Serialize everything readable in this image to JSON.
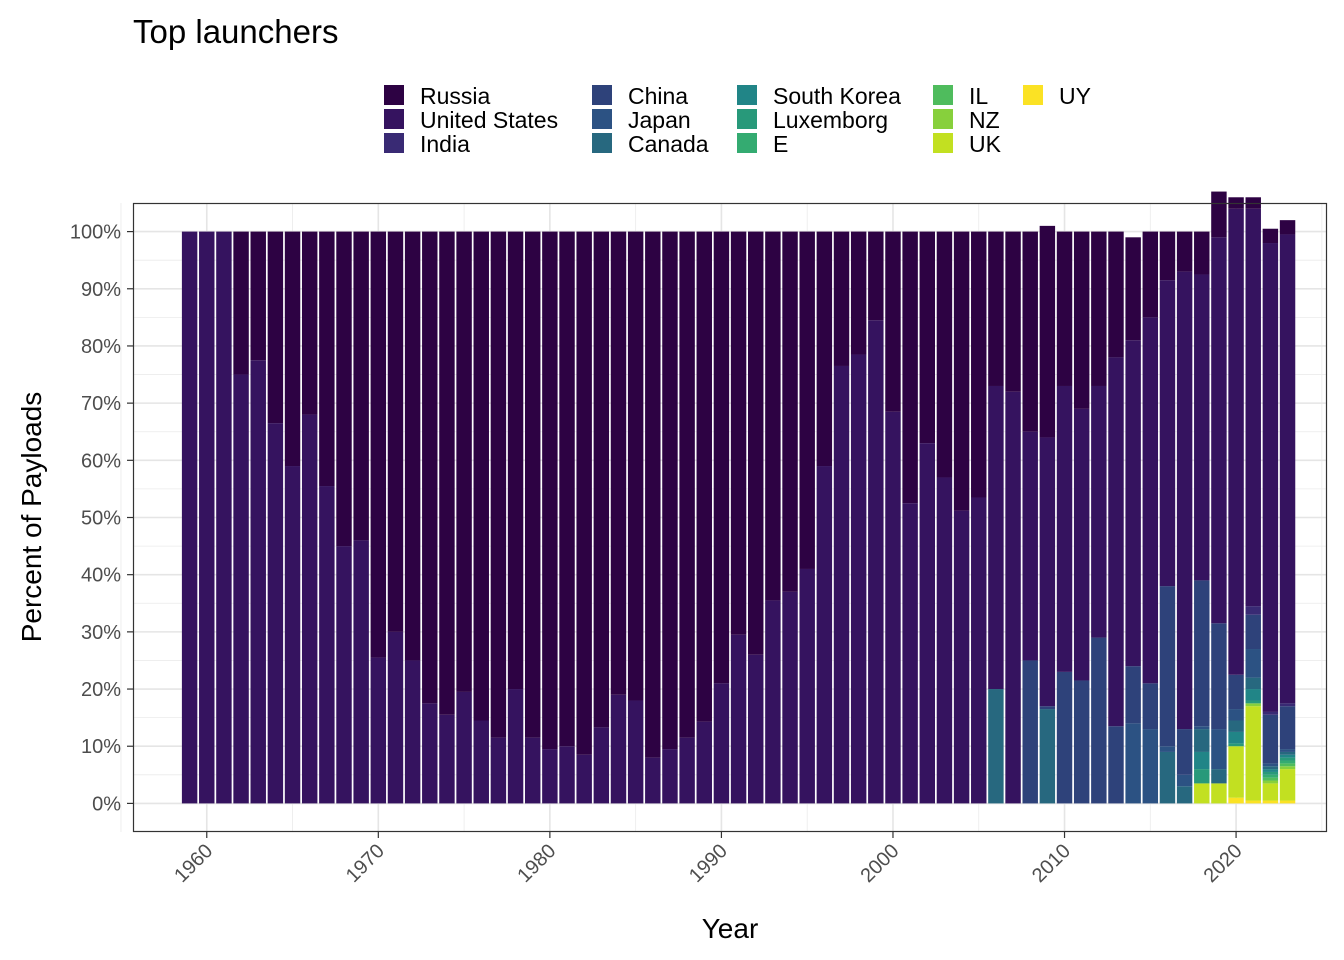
{
  "chart_data": {
    "type": "bar",
    "stacked": true,
    "percent": true,
    "title": "Top launchers",
    "xlabel": "Year",
    "ylabel": "Percent of Payloads",
    "xlim": [
      1955.7,
      2025.3
    ],
    "ylim": [
      -0.05,
      1.05
    ],
    "x_ticks": [
      "1960",
      "1970",
      "1980",
      "1990",
      "2000",
      "2010",
      "2020"
    ],
    "y_ticks": [
      "0%",
      "10%",
      "20%",
      "30%",
      "40%",
      "50%",
      "60%",
      "70%",
      "80%",
      "90%",
      "100%"
    ],
    "grid": true,
    "legend_position": "top",
    "legend": [
      {
        "name": "Russia",
        "color": "#2d0243"
      },
      {
        "name": "United States",
        "color": "#35135f"
      },
      {
        "name": "India",
        "color": "#392a74"
      },
      {
        "name": "China",
        "color": "#2e427a"
      },
      {
        "name": "Japan",
        "color": "#2c5283"
      },
      {
        "name": "Canada",
        "color": "#27687f"
      },
      {
        "name": "South Korea",
        "color": "#218587"
      },
      {
        "name": "Luxemborg",
        "color": "#28997a"
      },
      {
        "name": "E",
        "color": "#34ab71"
      },
      {
        "name": "IL",
        "color": "#4fbc5d"
      },
      {
        "name": "NZ",
        "color": "#87d03c"
      },
      {
        "name": "UK",
        "color": "#c2e021"
      },
      {
        "name": "UY",
        "color": "#fbe224"
      }
    ],
    "years": [
      1959,
      1960,
      1961,
      1962,
      1963,
      1964,
      1965,
      1966,
      1967,
      1968,
      1969,
      1970,
      1971,
      1972,
      1973,
      1974,
      1975,
      1976,
      1977,
      1978,
      1979,
      1980,
      1981,
      1982,
      1983,
      1984,
      1985,
      1986,
      1987,
      1988,
      1989,
      1990,
      1991,
      1992,
      1993,
      1994,
      1995,
      1996,
      1997,
      1998,
      1999,
      2000,
      2001,
      2002,
      2003,
      2004,
      2005,
      2006,
      2007,
      2008,
      2009,
      2010,
      2011,
      2012,
      2013,
      2014,
      2015,
      2016,
      2017,
      2018,
      2019,
      2020,
      2021,
      2022,
      2023
    ],
    "series": [
      {
        "name": "Russia",
        "values": [
          0,
          0,
          0,
          0.25,
          0.225,
          0.335,
          0.41,
          0.32,
          0.445,
          0.55,
          0.54,
          0.745,
          0.7,
          0.75,
          0.825,
          0.845,
          0.805,
          0.855,
          0.885,
          0.8,
          0.885,
          0.905,
          0.9,
          0.915,
          0.867,
          0.81,
          0.82,
          0.92,
          0.905,
          0.885,
          0.857,
          0.79,
          0.705,
          0.74,
          0.645,
          0.63,
          0.59,
          0.41,
          0.235,
          0.215,
          0.155,
          0.315,
          0.475,
          0.37,
          0.43,
          0.488,
          0.465,
          0.27,
          0.28,
          0.35,
          0.37,
          0.27,
          0.31,
          0.27,
          0.22,
          0.18,
          0.15,
          0.085,
          0.07,
          0.075,
          0.08,
          0.02,
          0.02,
          0.025,
          0.025
        ]
      },
      {
        "name": "United States",
        "values": [
          1,
          1,
          1,
          0.75,
          0.775,
          0.665,
          0.59,
          0.68,
          0.555,
          0.45,
          0.46,
          0.255,
          0.3,
          0.25,
          0.175,
          0.155,
          0.195,
          0.145,
          0.115,
          0.2,
          0.115,
          0.095,
          0.1,
          0.085,
          0.133,
          0.19,
          0.18,
          0.08,
          0.095,
          0.115,
          0.143,
          0.21,
          0.295,
          0.26,
          0.355,
          0.37,
          0.41,
          0.59,
          0.765,
          0.785,
          0.845,
          0.685,
          0.525,
          0.63,
          0.57,
          0.512,
          0.535,
          0.53,
          0.72,
          0.4,
          0.47,
          0.5,
          0.475,
          0.44,
          0.645,
          0.57,
          0.64,
          0.535,
          0.8,
          0.535,
          0.675,
          0.815,
          0.695,
          0.82,
          0.82
        ]
      },
      {
        "name": "India",
        "values": [
          0,
          0,
          0,
          0,
          0,
          0,
          0,
          0,
          0,
          0,
          0,
          0,
          0,
          0,
          0,
          0,
          0,
          0,
          0,
          0,
          0,
          0,
          0,
          0,
          0,
          0,
          0,
          0,
          0,
          0,
          0,
          0,
          0,
          0,
          0,
          0,
          0,
          0,
          0,
          0,
          0,
          0,
          0,
          0,
          0,
          0,
          0,
          0,
          0,
          0,
          0,
          0,
          0,
          0,
          0,
          0,
          0,
          0,
          0,
          0,
          0,
          0,
          0.015,
          0.005,
          0.005
        ]
      },
      {
        "name": "China",
        "values": [
          0,
          0,
          0,
          0,
          0,
          0,
          0,
          0,
          0,
          0,
          0,
          0,
          0,
          0,
          0,
          0,
          0,
          0,
          0,
          0,
          0,
          0,
          0,
          0,
          0,
          0,
          0,
          0,
          0,
          0,
          0,
          0,
          0,
          0,
          0,
          0,
          0,
          0,
          0,
          0,
          0,
          0,
          0,
          0,
          0,
          0,
          0,
          0,
          0,
          0.25,
          0.005,
          0.23,
          0.215,
          0.29,
          0.135,
          0.1,
          0.08,
          0.28,
          0.08,
          0.255,
          0.185,
          0.06,
          0.06,
          0.085,
          0.075
        ]
      },
      {
        "name": "Japan",
        "values": [
          0,
          0,
          0,
          0,
          0,
          0,
          0,
          0,
          0,
          0,
          0,
          0,
          0,
          0,
          0,
          0,
          0,
          0,
          0,
          0,
          0,
          0,
          0,
          0,
          0,
          0,
          0,
          0,
          0,
          0,
          0,
          0,
          0,
          0,
          0,
          0,
          0,
          0,
          0,
          0,
          0,
          0,
          0,
          0,
          0,
          0,
          0,
          0,
          0,
          0,
          0,
          0,
          0,
          0,
          0,
          0.14,
          0.13,
          0.01,
          0.02,
          0.005,
          0.07,
          0.02,
          0.05,
          0.005,
          0.005
        ]
      },
      {
        "name": "Canada",
        "values": [
          0,
          0,
          0,
          0,
          0,
          0,
          0,
          0,
          0,
          0,
          0,
          0,
          0,
          0,
          0,
          0,
          0,
          0,
          0,
          0,
          0,
          0,
          0,
          0,
          0,
          0,
          0,
          0,
          0,
          0,
          0,
          0,
          0,
          0,
          0,
          0,
          0,
          0,
          0,
          0,
          0,
          0,
          0,
          0,
          0,
          0,
          0,
          0.2,
          0,
          0,
          0.165,
          0,
          0,
          0,
          0,
          0,
          0,
          0.09,
          0.03,
          0.04,
          0.025,
          0.02,
          0.02,
          0.005,
          0.005
        ]
      },
      {
        "name": "South Korea",
        "values": [
          0,
          0,
          0,
          0,
          0,
          0,
          0,
          0,
          0,
          0,
          0,
          0,
          0,
          0,
          0,
          0,
          0,
          0,
          0,
          0,
          0,
          0,
          0,
          0,
          0,
          0,
          0,
          0,
          0,
          0,
          0,
          0,
          0,
          0,
          0,
          0,
          0,
          0,
          0,
          0,
          0,
          0,
          0,
          0,
          0,
          0,
          0,
          0,
          0,
          0,
          0,
          0,
          0,
          0,
          0,
          0,
          0,
          0,
          0,
          0.03,
          0,
          0.02,
          0.02,
          0.005,
          0.005
        ]
      },
      {
        "name": "Luxemborg",
        "values": [
          0,
          0,
          0,
          0,
          0,
          0,
          0,
          0,
          0,
          0,
          0,
          0,
          0,
          0,
          0,
          0,
          0,
          0,
          0,
          0,
          0,
          0,
          0,
          0,
          0,
          0,
          0,
          0,
          0,
          0,
          0,
          0,
          0,
          0,
          0,
          0,
          0,
          0,
          0,
          0,
          0,
          0,
          0,
          0,
          0,
          0,
          0,
          0,
          0,
          0,
          0,
          0,
          0,
          0,
          0,
          0,
          0,
          0,
          0,
          0.025,
          0,
          0.005,
          0.005,
          0.005,
          0.005
        ]
      },
      {
        "name": "E",
        "values": [
          0,
          0,
          0,
          0,
          0,
          0,
          0,
          0,
          0,
          0,
          0,
          0,
          0,
          0,
          0,
          0,
          0,
          0,
          0,
          0,
          0,
          0,
          0,
          0,
          0,
          0,
          0,
          0,
          0,
          0,
          0,
          0,
          0,
          0,
          0,
          0,
          0,
          0,
          0,
          0,
          0,
          0,
          0,
          0,
          0,
          0,
          0,
          0,
          0,
          0,
          0,
          0,
          0,
          0,
          0,
          0,
          0,
          0,
          0,
          0,
          0,
          0,
          0,
          0.005,
          0.005
        ]
      },
      {
        "name": "IL",
        "values": [
          0,
          0,
          0,
          0,
          0,
          0,
          0,
          0,
          0,
          0,
          0,
          0,
          0,
          0,
          0,
          0,
          0,
          0,
          0,
          0,
          0,
          0,
          0,
          0,
          0,
          0,
          0,
          0,
          0,
          0,
          0,
          0,
          0,
          0,
          0,
          0,
          0,
          0,
          0,
          0,
          0,
          0,
          0,
          0,
          0,
          0,
          0,
          0,
          0,
          0,
          0,
          0,
          0,
          0,
          0,
          0,
          0,
          0,
          0,
          0,
          0,
          0,
          0,
          0.005,
          0.005
        ]
      },
      {
        "name": "NZ",
        "values": [
          0,
          0,
          0,
          0,
          0,
          0,
          0,
          0,
          0,
          0,
          0,
          0,
          0,
          0,
          0,
          0,
          0,
          0,
          0,
          0,
          0,
          0,
          0,
          0,
          0,
          0,
          0,
          0,
          0,
          0,
          0,
          0,
          0,
          0,
          0,
          0,
          0,
          0,
          0,
          0,
          0,
          0,
          0,
          0,
          0,
          0,
          0,
          0,
          0,
          0,
          0,
          0,
          0,
          0,
          0,
          0,
          0,
          0,
          0,
          0,
          0,
          0,
          0.005,
          0.005,
          0.005
        ]
      },
      {
        "name": "UK",
        "values": [
          0,
          0,
          0,
          0,
          0,
          0,
          0,
          0,
          0,
          0,
          0,
          0,
          0,
          0,
          0,
          0,
          0,
          0,
          0,
          0,
          0,
          0,
          0,
          0,
          0,
          0,
          0,
          0,
          0,
          0,
          0,
          0,
          0,
          0,
          0,
          0,
          0,
          0,
          0,
          0,
          0,
          0,
          0,
          0,
          0,
          0,
          0,
          0,
          0,
          0,
          0,
          0,
          0,
          0,
          0,
          0,
          0,
          0,
          0,
          0.035,
          0.035,
          0.09,
          0.165,
          0.03,
          0.055
        ]
      },
      {
        "name": "UY",
        "values": [
          0,
          0,
          0,
          0,
          0,
          0,
          0,
          0,
          0,
          0,
          0,
          0,
          0,
          0,
          0,
          0,
          0,
          0,
          0,
          0,
          0,
          0,
          0,
          0,
          0,
          0,
          0,
          0,
          0,
          0,
          0,
          0,
          0,
          0,
          0,
          0,
          0,
          0,
          0,
          0,
          0,
          0,
          0,
          0,
          0,
          0,
          0,
          0,
          0,
          0,
          0,
          0,
          0,
          0,
          0,
          0,
          0,
          0,
          0,
          0,
          0,
          0.01,
          0.005,
          0.005,
          0.005
        ]
      }
    ]
  }
}
